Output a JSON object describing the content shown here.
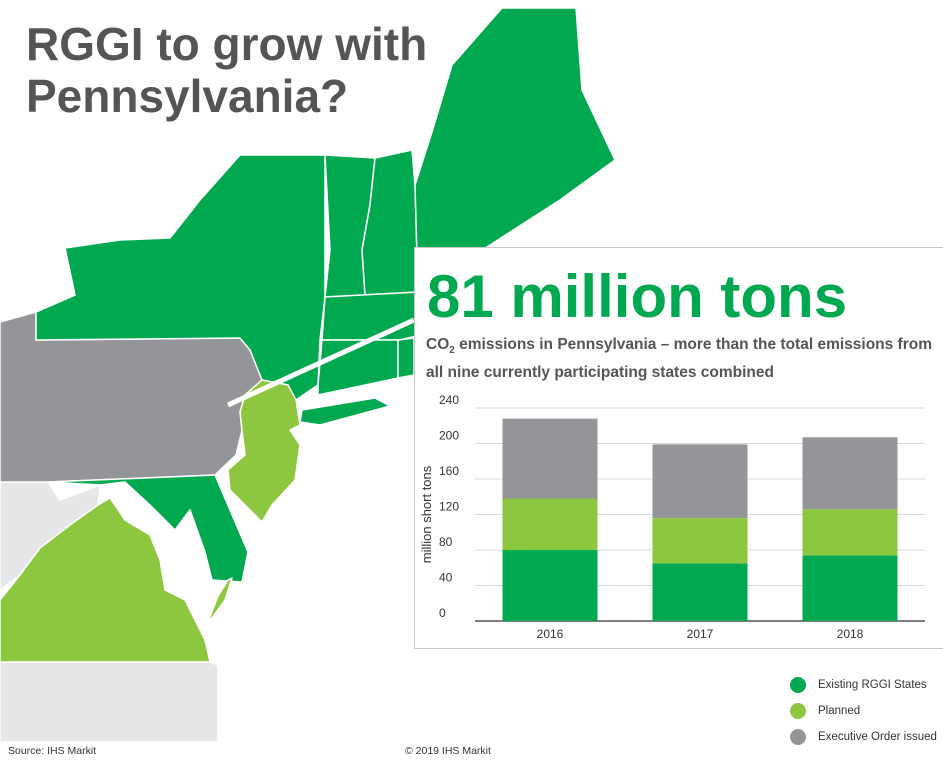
{
  "title": "RGGI to grow with Pennsylvania?",
  "headline": "81 million tons",
  "subtitle": {
    "pre": "CO",
    "sub": "2",
    "post": " emissions in Pennsylvania – more than the total emissions from all nine currently participating states combined"
  },
  "colors": {
    "existing": "#00a94f",
    "planned": "#8dc63f",
    "executive": "#939598",
    "other": "#e6e7e8",
    "headline": "#00a94f",
    "title": "#555555"
  },
  "chart_data": {
    "type": "bar",
    "stacked": true,
    "categories": [
      "2016",
      "2017",
      "2018"
    ],
    "series": [
      {
        "name": "Existing RGGI States",
        "color": "#00a94f",
        "values": [
          80,
          65,
          74
        ]
      },
      {
        "name": "Planned",
        "color": "#8dc63f",
        "values": [
          58,
          51,
          52
        ]
      },
      {
        "name": "Executive Order issued",
        "color": "#939598",
        "values": [
          90,
          83,
          81
        ]
      }
    ],
    "ylabel": "million short tons",
    "xlabel": "",
    "ylim": [
      0,
      240
    ],
    "yticks": [
      0,
      40,
      80,
      120,
      160,
      200,
      240
    ],
    "grid": true,
    "legend_position": "bottom-right"
  },
  "legend": [
    {
      "label": "Existing RGGI States",
      "color": "#00a94f"
    },
    {
      "label": "Planned",
      "color": "#8dc63f"
    },
    {
      "label": "Executive Order issued",
      "color": "#939598"
    }
  ],
  "footer": {
    "source": "Source: IHS Markit",
    "copyright": "© 2019 IHS Markit"
  }
}
